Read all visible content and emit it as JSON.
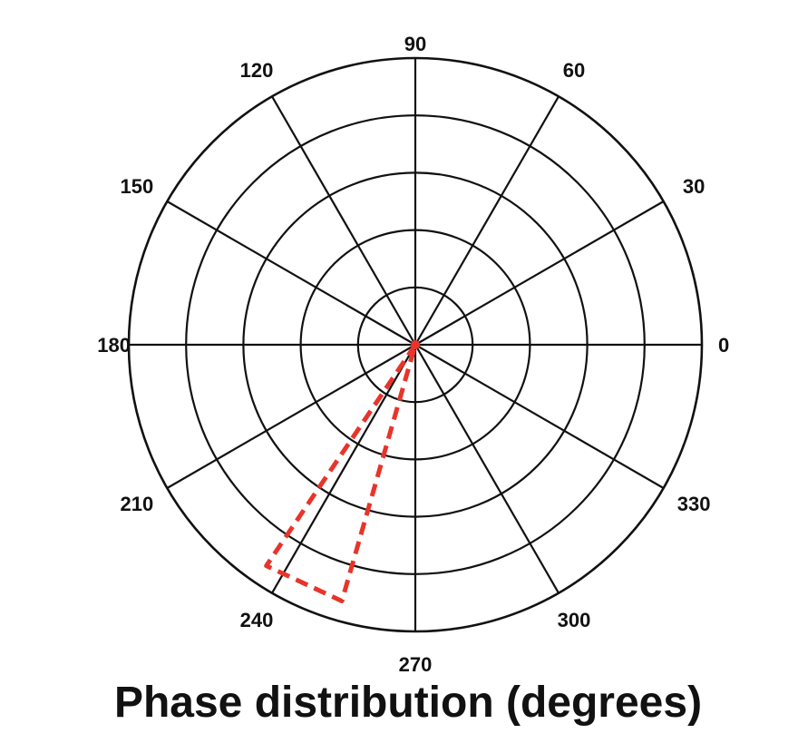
{
  "chart_data": {
    "type": "polar",
    "title": "Phase distribution (degrees)",
    "angular_unit": "degrees",
    "angular_ticks": [
      0,
      30,
      60,
      90,
      120,
      150,
      180,
      210,
      240,
      270,
      300,
      330
    ],
    "angular_tick_labels": [
      "0",
      "30",
      "60",
      "90",
      "120",
      "150",
      "180",
      "210",
      "240",
      "270",
      "300",
      "330"
    ],
    "radial_rings": 5,
    "grid": true,
    "highlight": {
      "type": "sector",
      "start_angle": 236,
      "end_angle": 254,
      "radius_fraction": 0.93,
      "color": "#e8342a",
      "style": "dashed"
    },
    "colors": {
      "grid": "#111111",
      "highlight": "#e8342a"
    }
  }
}
